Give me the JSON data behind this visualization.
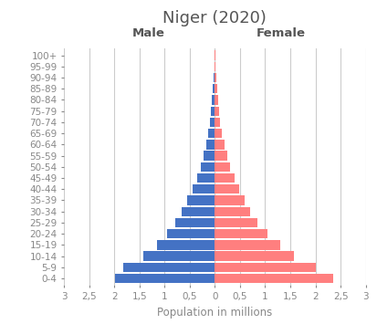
{
  "title": "Niger (2020)",
  "xlabel": "Population in millions",
  "male_label": "Male",
  "female_label": "Female",
  "age_groups": [
    "0-4",
    "5-9",
    "10-14",
    "15-19",
    "20-24",
    "25-29",
    "30-34",
    "35-39",
    "40-44",
    "45-49",
    "50-54",
    "55-59",
    "60-64",
    "65-69",
    "70-74",
    "75-79",
    "80-84",
    "85-89",
    "90-94",
    "95-99",
    "100+"
  ],
  "male_values": [
    1.98,
    1.82,
    1.43,
    1.15,
    0.96,
    0.79,
    0.66,
    0.55,
    0.445,
    0.36,
    0.285,
    0.225,
    0.175,
    0.135,
    0.1,
    0.075,
    0.055,
    0.035,
    0.02,
    0.01,
    0.005
  ],
  "female_values": [
    2.35,
    2.0,
    1.58,
    1.3,
    1.04,
    0.84,
    0.7,
    0.595,
    0.48,
    0.385,
    0.305,
    0.24,
    0.19,
    0.145,
    0.11,
    0.08,
    0.06,
    0.04,
    0.02,
    0.01,
    0.005
  ],
  "male_color": "#4472C4",
  "female_color": "#FF7F7F",
  "background_color": "#FFFFFF",
  "xlim": 3.0,
  "xtick_vals": [
    -3.0,
    -2.5,
    -2.0,
    -1.5,
    -1.0,
    -0.5,
    0.0,
    0.5,
    1.0,
    1.5,
    2.0,
    2.5,
    3.0
  ],
  "xtick_labels": [
    "3",
    "2,5",
    "2",
    "1,5",
    "1",
    "0,5",
    "0",
    "0,5",
    "1",
    "1,5",
    "2",
    "2,5",
    "3"
  ],
  "grid_color": "#CCCCCC",
  "title_fontsize": 13,
  "label_fontsize": 8.5,
  "tick_fontsize": 7.5,
  "axis_label_color": "#888888",
  "bar_height": 0.85
}
